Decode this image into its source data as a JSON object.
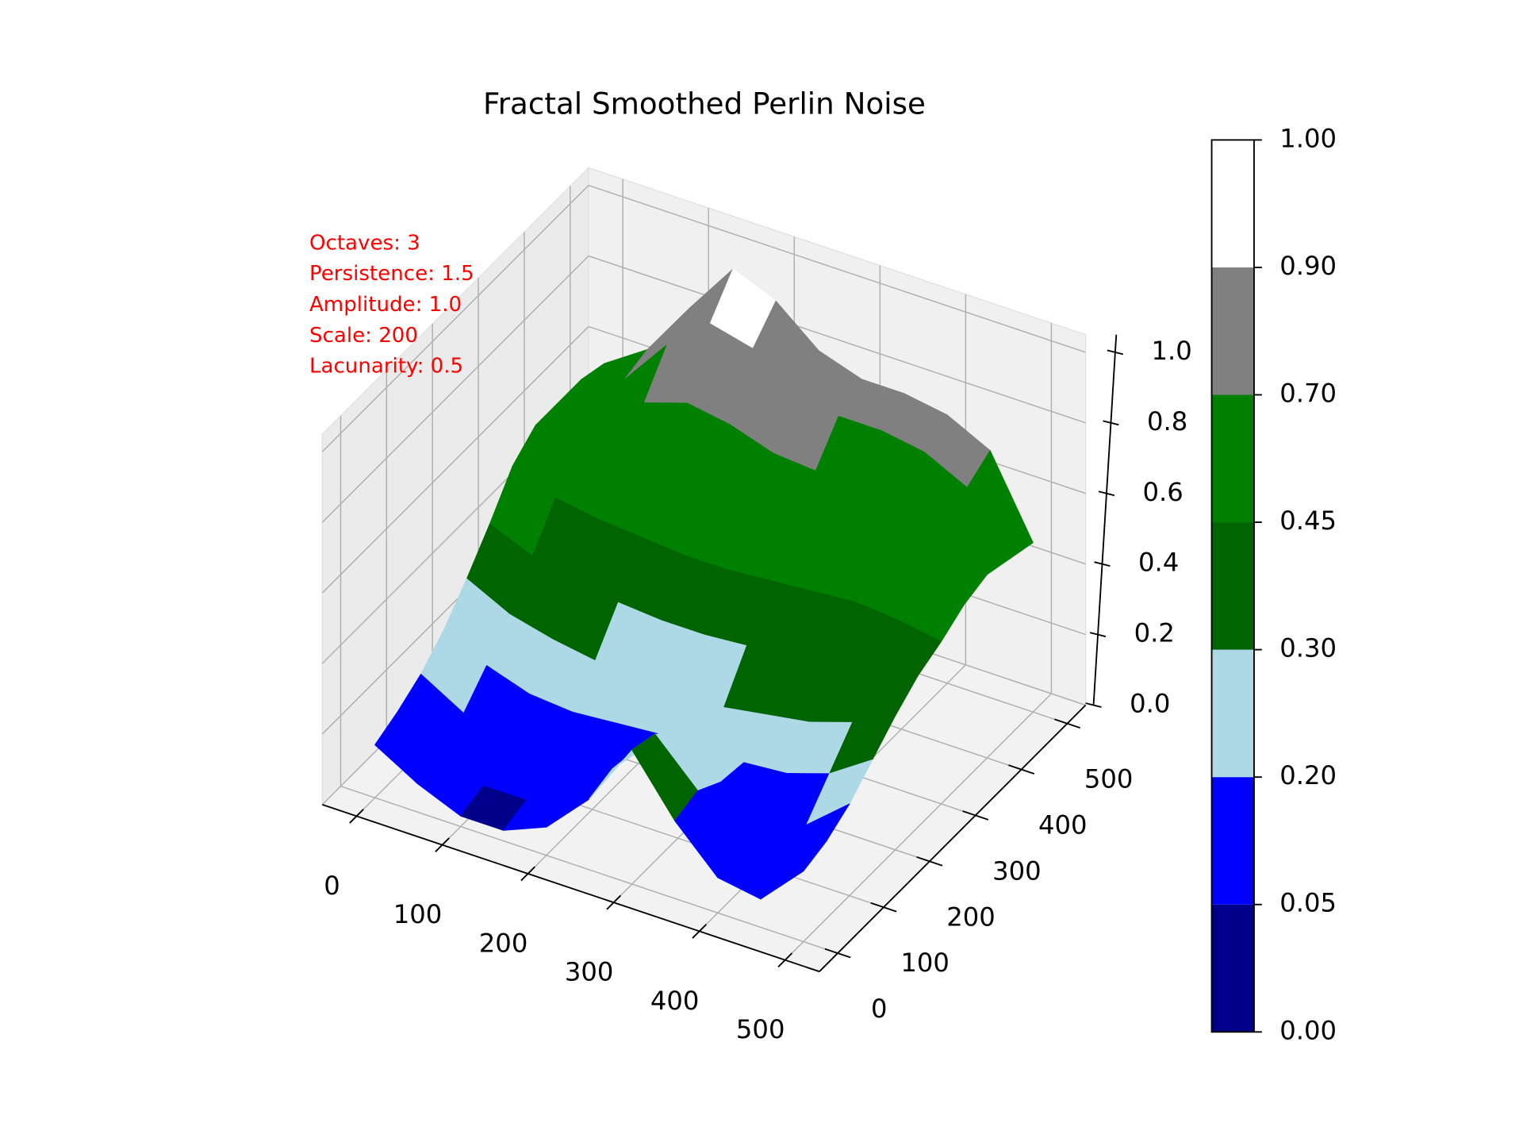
{
  "chart_data": {
    "type": "surface3d",
    "title": "Fractal Smoothed Perlin Noise",
    "annotations": [
      "Octaves: 3",
      "Persistence: 1.5",
      "Amplitude: 1.0",
      "Scale: 200",
      "Lacunarity: 0.5"
    ],
    "annotation_color": "#ff0000",
    "x": [
      0,
      50,
      100,
      150,
      200,
      250,
      300,
      350,
      400,
      450,
      500
    ],
    "y": [
      0,
      50,
      100,
      150,
      200,
      250,
      300,
      350,
      400,
      450,
      500
    ],
    "z": [
      [
        0.15,
        0.08,
        0.03,
        0.03,
        0.08,
        0.2,
        0.38,
        0.22,
        0.1,
        0.08,
        0.2
      ],
      [
        0.18,
        0.1,
        0.05,
        0.05,
        0.1,
        0.22,
        0.36,
        0.24,
        0.12,
        0.1,
        0.22
      ],
      [
        0.22,
        0.15,
        0.1,
        0.1,
        0.14,
        0.2,
        0.28,
        0.2,
        0.14,
        0.16,
        0.26
      ],
      [
        0.28,
        0.22,
        0.18,
        0.17,
        0.18,
        0.19,
        0.2,
        0.19,
        0.2,
        0.24,
        0.32
      ],
      [
        0.36,
        0.3,
        0.27,
        0.25,
        0.24,
        0.23,
        0.24,
        0.26,
        0.28,
        0.32,
        0.38
      ],
      [
        0.45,
        0.4,
        0.37,
        0.35,
        0.34,
        0.34,
        0.35,
        0.37,
        0.38,
        0.41,
        0.43
      ],
      [
        0.55,
        0.5,
        0.48,
        0.47,
        0.46,
        0.46,
        0.47,
        0.48,
        0.49,
        0.48,
        0.46
      ],
      [
        0.6,
        0.6,
        0.6,
        0.6,
        0.58,
        0.56,
        0.56,
        0.57,
        0.57,
        0.54,
        0.5
      ],
      [
        0.6,
        0.62,
        0.68,
        0.72,
        0.7,
        0.66,
        0.65,
        0.66,
        0.65,
        0.6,
        0.52
      ],
      [
        0.6,
        0.64,
        0.78,
        0.88,
        0.85,
        0.78,
        0.74,
        0.74,
        0.72,
        0.66,
        0.5
      ],
      [
        0.58,
        0.66,
        0.82,
        0.97,
        0.92,
        0.82,
        0.78,
        0.78,
        0.76,
        0.7,
        0.48
      ]
    ],
    "xlim": [
      0,
      500
    ],
    "ylim": [
      0,
      500
    ],
    "zlim": [
      0,
      1
    ],
    "xticks": [
      0,
      100,
      200,
      300,
      400,
      500
    ],
    "yticks": [
      0,
      100,
      200,
      300,
      400,
      500
    ],
    "zticks": [
      {
        "value": 0,
        "label": "0.0"
      },
      0.2,
      0.4,
      0.6,
      0.8,
      {
        "value": 1,
        "label": "1.0"
      }
    ],
    "grid": true,
    "colorbar": {
      "boundaries": [
        {
          "value": 0,
          "label": "0.00"
        },
        0.05,
        {
          "value": 0.2,
          "label": "0.20"
        },
        {
          "value": 0.3,
          "label": "0.30"
        },
        0.45,
        {
          "value": 0.7,
          "label": "0.70"
        },
        {
          "value": 0.9,
          "label": "0.90"
        },
        {
          "value": 1,
          "label": "1.00"
        }
      ],
      "colors": [
        "#00008b",
        "#0000ff",
        "#add8e6",
        "#006400",
        "#008000",
        "#808080",
        "#ffffff"
      ]
    }
  }
}
